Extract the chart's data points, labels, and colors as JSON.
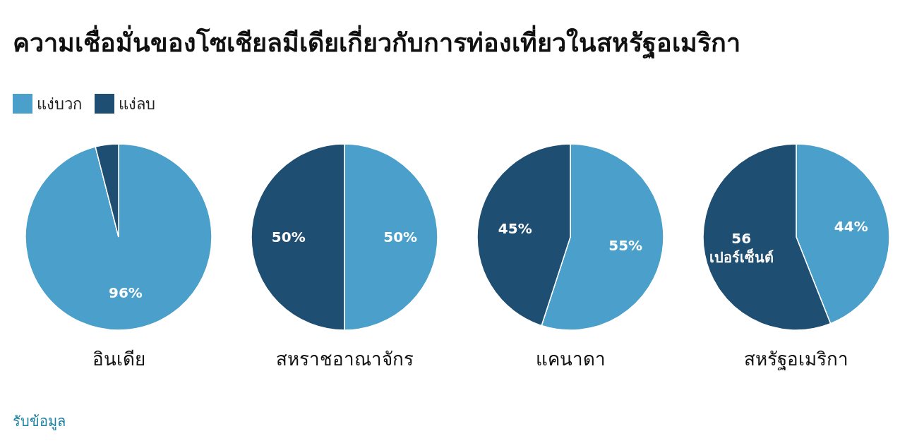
{
  "chart_data": [
    {
      "type": "pie",
      "title": "ความเชื่อมั่นของโซเชียลมีเดียเกี่ยวกับการท่องเที่ยวในสหรัฐอเมริกา",
      "xlabel": "อินเดีย",
      "legend": "top left",
      "categories": [
        "แง่บวก",
        "แง่ลบ"
      ],
      "values": [
        96,
        4
      ],
      "colors": [
        "#4a9fcb",
        "#1f4e73"
      ],
      "value_labels": [
        "96%",
        null
      ],
      "annotations": [
        "รับข้อมูล"
      ]
    },
    {
      "type": "pie",
      "xlabel": "สหราชอาณาจักร",
      "categories": [
        null,
        null
      ],
      "values": [
        50,
        50
      ],
      "colors": [
        "#4a9fcb",
        "#1f4e73"
      ],
      "value_labels": [
        "50%",
        "50%"
      ]
    },
    {
      "type": "pie",
      "xlabel": "แคนาดา",
      "categories": [
        null,
        null
      ],
      "values": [
        55,
        45
      ],
      "colors": [
        "#4a9fcb",
        "#1f4e73"
      ],
      "value_labels": [
        "55%",
        "45%"
      ]
    },
    {
      "type": "pie",
      "xlabel": "สหรัฐอเมริกา",
      "categories": [
        null,
        null
      ],
      "values": [
        44,
        56
      ],
      "colors": [
        "#4a9fcb",
        "#1f4e73"
      ],
      "value_labels": [
        "44%",
        "56 เปอร์เซ็นต์"
      ]
    }
  ]
}
